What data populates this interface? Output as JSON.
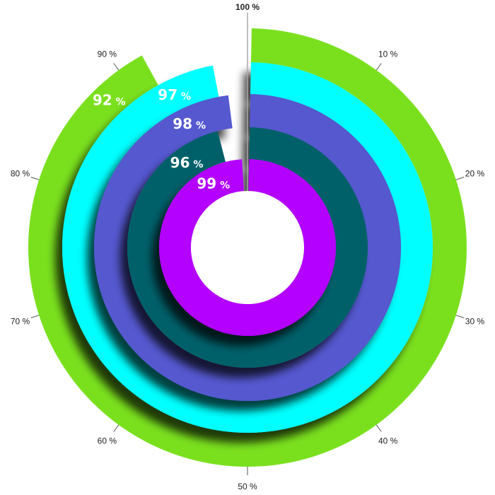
{
  "chart_data": {
    "type": "radial-bar",
    "title": "",
    "center": [
      350,
      350
    ],
    "hole_radius": 80,
    "axis_ticks": [
      "100 %",
      "10 %",
      "20 %",
      "30 %",
      "40 %",
      "50 %",
      "60 %",
      "70 %",
      "80 %",
      "90 %"
    ],
    "series": [
      {
        "name": "ring-1-outer",
        "value": 92,
        "label": "92",
        "unit": "%",
        "color": "#7AE01E",
        "r_outer": 310,
        "r_inner": 262
      },
      {
        "name": "ring-2",
        "value": 97,
        "label": "97",
        "unit": "%",
        "color": "#00FFFF",
        "r_outer": 262,
        "r_inner": 217
      },
      {
        "name": "ring-3",
        "value": 98,
        "label": "98",
        "unit": "%",
        "color": "#5558CF",
        "r_outer": 217,
        "r_inner": 170
      },
      {
        "name": "ring-4",
        "value": 96,
        "label": "96",
        "unit": "%",
        "color": "#00616A",
        "r_outer": 170,
        "r_inner": 125
      },
      {
        "name": "ring-5-inner",
        "value": 99,
        "label": "99",
        "unit": "%",
        "color": "#B300FF",
        "r_outer": 125,
        "r_inner": 80
      }
    ],
    "range": [
      0,
      100
    ]
  }
}
